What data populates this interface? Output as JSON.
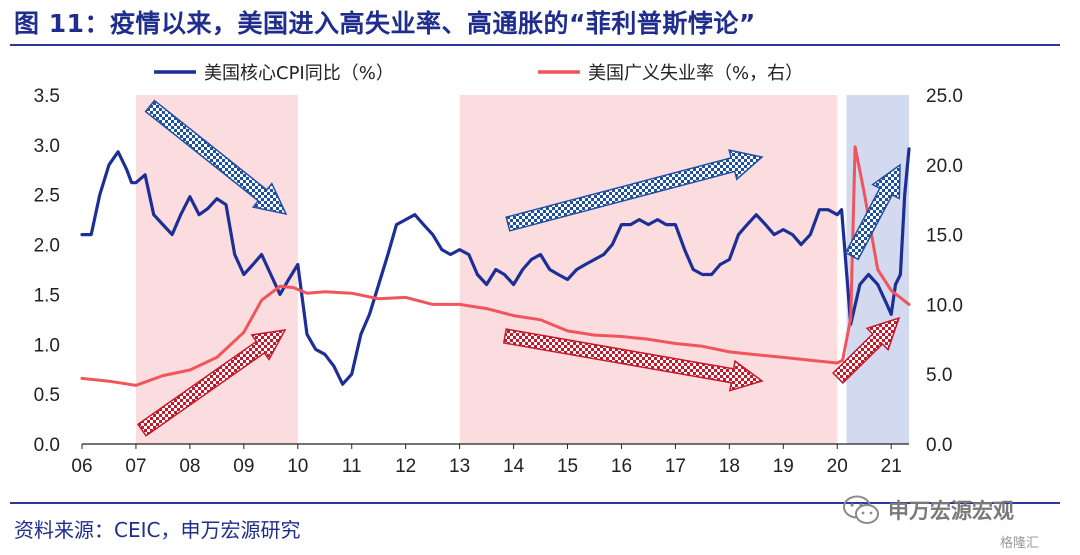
{
  "title": "图 11：疫情以来，美国进入高失业率、高通胀的“菲利普斯悖论”",
  "source": "资料来源：CEIC，申万宏源研究",
  "watermark": {
    "main": "申万宏源宏观",
    "sub": "格隆汇",
    "icon": "wechat-icon"
  },
  "colors": {
    "title": "#1f2d8c",
    "cpi": "#1d2f96",
    "unemp": "#f2545b",
    "shade_pink": "#fbdddf",
    "shade_blue": "#d3d9ee",
    "arrow_blue": "#1f4fa0",
    "arrow_red": "#c3192b"
  },
  "chart_data": {
    "type": "line",
    "x_tick_labels": [
      "06",
      "07",
      "08",
      "09",
      "10",
      "11",
      "12",
      "13",
      "14",
      "15",
      "16",
      "17",
      "18",
      "19",
      "20",
      "21"
    ],
    "y_left": {
      "ylim": [
        0.0,
        3.5
      ],
      "ticks": [
        "0.0",
        "0.5",
        "1.0",
        "1.5",
        "2.0",
        "2.5",
        "3.0",
        "3.5"
      ]
    },
    "y_right": {
      "ylim": [
        0.0,
        25.0
      ],
      "ticks": [
        "0.0",
        "5.0",
        "10.0",
        "15.0",
        "20.0",
        "25.0"
      ]
    },
    "legend": [
      "美国核心CPI同比（%）",
      "美国广义失业率（%，右）"
    ],
    "shaded_periods": [
      {
        "from": 2007.0,
        "to": 2010.0,
        "color": "pink"
      },
      {
        "from": 2013.0,
        "to": 2020.0,
        "color": "pink"
      },
      {
        "from": 2020.17,
        "to": 2021.33,
        "color": "blue"
      }
    ],
    "series": [
      {
        "name": "美国核心CPI同比（%）",
        "axis": "left",
        "x": [
          2006.0,
          2006.17,
          2006.33,
          2006.5,
          2006.67,
          2006.83,
          2006.92,
          2007.0,
          2007.17,
          2007.33,
          2007.5,
          2007.67,
          2007.83,
          2008.0,
          2008.17,
          2008.33,
          2008.5,
          2008.67,
          2008.83,
          2009.0,
          2009.17,
          2009.33,
          2009.5,
          2009.67,
          2009.83,
          2010.0,
          2010.17,
          2010.33,
          2010.5,
          2010.67,
          2010.83,
          2011.0,
          2011.17,
          2011.33,
          2011.5,
          2011.67,
          2011.83,
          2012.0,
          2012.17,
          2012.33,
          2012.5,
          2012.67,
          2012.83,
          2013.0,
          2013.17,
          2013.33,
          2013.5,
          2013.67,
          2013.83,
          2014.0,
          2014.17,
          2014.33,
          2014.5,
          2014.67,
          2014.83,
          2015.0,
          2015.17,
          2015.33,
          2015.5,
          2015.67,
          2015.83,
          2016.0,
          2016.17,
          2016.33,
          2016.5,
          2016.67,
          2016.83,
          2017.0,
          2017.17,
          2017.33,
          2017.5,
          2017.67,
          2017.83,
          2018.0,
          2018.17,
          2018.33,
          2018.5,
          2018.67,
          2018.83,
          2019.0,
          2019.17,
          2019.33,
          2019.5,
          2019.67,
          2019.83,
          2020.0,
          2020.08,
          2020.25,
          2020.42,
          2020.58,
          2020.75,
          2020.92,
          2021.0,
          2021.08,
          2021.17,
          2021.25,
          2021.33
        ],
        "y": [
          2.1,
          2.1,
          2.5,
          2.8,
          2.93,
          2.75,
          2.62,
          2.62,
          2.7,
          2.3,
          2.2,
          2.1,
          2.3,
          2.48,
          2.3,
          2.36,
          2.46,
          2.4,
          1.9,
          1.7,
          1.8,
          1.9,
          1.7,
          1.5,
          1.65,
          1.8,
          1.1,
          0.95,
          0.9,
          0.78,
          0.6,
          0.7,
          1.1,
          1.3,
          1.6,
          1.9,
          2.2,
          2.25,
          2.3,
          2.2,
          2.1,
          1.95,
          1.9,
          1.95,
          1.9,
          1.7,
          1.6,
          1.75,
          1.7,
          1.6,
          1.75,
          1.85,
          1.9,
          1.75,
          1.7,
          1.65,
          1.75,
          1.8,
          1.85,
          1.9,
          2.0,
          2.2,
          2.2,
          2.25,
          2.2,
          2.25,
          2.2,
          2.2,
          1.95,
          1.75,
          1.7,
          1.7,
          1.8,
          1.85,
          2.1,
          2.2,
          2.3,
          2.2,
          2.1,
          2.15,
          2.1,
          2.0,
          2.1,
          2.35,
          2.35,
          2.3,
          2.35,
          1.2,
          1.6,
          1.7,
          1.6,
          1.4,
          1.3,
          1.6,
          1.7,
          2.5,
          2.96
        ]
      },
      {
        "name": "美国广义失业率（%，右）",
        "axis": "right",
        "x": [
          2006.0,
          2006.5,
          2007.0,
          2007.5,
          2008.0,
          2008.5,
          2009.0,
          2009.33,
          2009.67,
          2009.92,
          2010.17,
          2010.5,
          2011.0,
          2011.5,
          2012.0,
          2012.5,
          2013.0,
          2013.5,
          2014.0,
          2014.5,
          2015.0,
          2015.5,
          2016.0,
          2016.5,
          2017.0,
          2017.5,
          2018.0,
          2018.5,
          2019.0,
          2019.5,
          2020.0,
          2020.1,
          2020.25,
          2020.33,
          2020.5,
          2020.75,
          2021.0,
          2021.33
        ],
        "y": [
          4.7,
          4.5,
          4.2,
          4.9,
          5.3,
          6.2,
          8.0,
          10.3,
          11.3,
          11.2,
          10.8,
          10.9,
          10.8,
          10.4,
          10.5,
          10.0,
          10.0,
          9.7,
          9.2,
          8.9,
          8.1,
          7.8,
          7.7,
          7.5,
          7.2,
          7.0,
          6.6,
          6.4,
          6.2,
          6.0,
          5.8,
          6.0,
          9.0,
          21.3,
          18.0,
          12.5,
          11.0,
          10.0
        ]
      }
    ]
  }
}
